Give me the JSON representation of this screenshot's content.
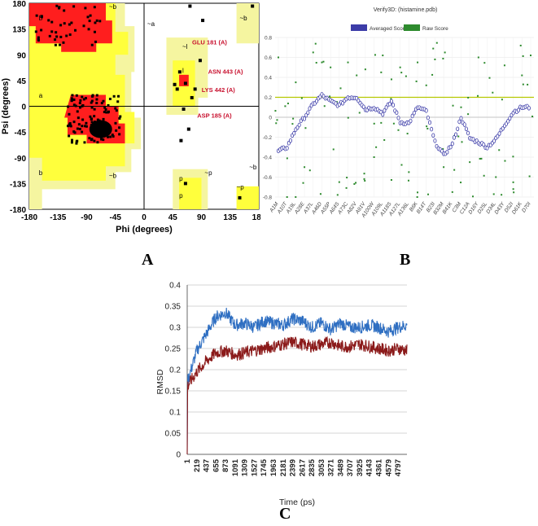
{
  "panel_labels": {
    "a": "A",
    "b": "B",
    "c": "C"
  },
  "chart_data": [
    {
      "type": "scatter",
      "panel": "A",
      "title": "",
      "xlabel": "Phi (degrees)",
      "ylabel": "Psi (degrees)",
      "xlim": [
        -180,
        180
      ],
      "ylim": [
        -180,
        180
      ],
      "xticks": [
        "-180",
        "-135",
        "-90",
        "-45",
        "0",
        "45",
        "90",
        "135",
        "180"
      ],
      "yticks": [
        "180",
        "135",
        "90",
        "45",
        "0",
        "-45",
        "-90",
        "-135",
        "-180"
      ],
      "region_labels": [
        "b",
        "a",
        "b",
        "~b",
        "~b",
        "~l",
        "l",
        "p",
        "p",
        "~p",
        "~b",
        "~b",
        "~p",
        "~a"
      ],
      "annotations": [
        {
          "text": "GLU 181 (A)",
          "x": 60,
          "y": 108
        },
        {
          "text": "ASN 443 (A)",
          "x": 85,
          "y": 57
        },
        {
          "text": "LYS 442 (A)",
          "x": 75,
          "y": 25
        },
        {
          "text": "ASP 185 (A)",
          "x": 68,
          "y": -20
        }
      ],
      "outliers": [
        [
          48,
          38
        ],
        [
          52,
          30
        ],
        [
          80,
          30
        ],
        [
          65,
          40
        ],
        [
          56,
          60
        ],
        [
          88,
          80
        ],
        [
          75,
          15
        ],
        [
          62,
          -5
        ],
        [
          70,
          -40
        ],
        [
          58,
          -60
        ],
        [
          72,
          175
        ],
        [
          65,
          -135
        ],
        [
          92,
          150
        ],
        [
          150,
          -160
        ],
        [
          170,
          175
        ]
      ],
      "grid": false
    },
    {
      "type": "scatter",
      "panel": "B",
      "title": "Verify3D:  (histamine.pdb)",
      "legend": [
        "Averaged Score",
        "Raw Score"
      ],
      "legend_position": "top",
      "ylim": [
        -0.8,
        0.8
      ],
      "yticks": [
        "0.8",
        "0.6",
        "0.4",
        "0.2",
        "0",
        "-0.2",
        "-0.4",
        "-0.6",
        "-0.8"
      ],
      "reference_line": 0.2,
      "categories": [
        "A1M",
        "A10T",
        "A19L",
        "A28E",
        "A37L",
        "A46D",
        "A55P",
        "A64S",
        "A73C",
        "A82V",
        "A91V",
        "A100W",
        "A109L",
        "A118S",
        "A127L",
        "A136L",
        "B6K",
        "B14T",
        "B23I",
        "B32M",
        "B41K",
        "C3M",
        "C12A",
        "D16Y",
        "D25L",
        "D34L",
        "D43Y",
        "D52I",
        "D61K",
        "D70I"
      ],
      "series": [
        {
          "name": "Averaged Score",
          "values": [
            -0.34,
            -0.3,
            -0.12,
            0.0,
            0.13,
            0.22,
            0.16,
            0.12,
            0.2,
            0.2,
            0.08,
            0.1,
            0.04,
            0.16,
            -0.05,
            -0.06,
            0.1,
            0.06,
            -0.25,
            -0.38,
            -0.27,
            0.0,
            -0.21,
            -0.25,
            -0.3,
            -0.22,
            -0.08,
            0.05,
            0.1,
            0.1
          ]
        },
        {
          "name": "Raw Score",
          "values": [
            0.6,
            -0.8,
            0.35,
            -0.5,
            0.65,
            0.55,
            0.5,
            -0.65,
            0.55,
            0.42,
            0.48,
            -0.4,
            0.62,
            0.38,
            0.5,
            -0.55,
            0.55,
            0.32,
            0.58,
            -0.5,
            -0.75,
            0.1,
            -0.45,
            0.6,
            -0.3,
            -0.6,
            0.52,
            -0.72,
            0.42,
            0.62
          ]
        }
      ],
      "grid": true
    },
    {
      "type": "line",
      "panel": "C",
      "title": "",
      "xlabel": "Time (ps)",
      "ylabel": "RMSD",
      "ylim": [
        0,
        0.4
      ],
      "yticks": [
        "0.4",
        "0.35",
        "0.3",
        "0.25",
        "0.2",
        "0.15",
        "0.1",
        "0.05",
        "0"
      ],
      "x_ticks": [
        "1",
        "219",
        "437",
        "655",
        "873",
        "1091",
        "1309",
        "1527",
        "1745",
        "1963",
        "2181",
        "2399",
        "2617",
        "2835",
        "3053",
        "3271",
        "3489",
        "3707",
        "3925",
        "4143",
        "4361",
        "4579",
        "4797"
      ],
      "x": [
        1,
        219,
        437,
        655,
        873,
        1091,
        1309,
        1527,
        1745,
        1963,
        2181,
        2399,
        2617,
        2835,
        3053,
        3271,
        3489,
        3707,
        3925,
        4143,
        4361,
        4579,
        4797,
        5000
      ],
      "series": [
        {
          "values": [
            0.17,
            0.245,
            0.285,
            0.325,
            0.335,
            0.305,
            0.31,
            0.3,
            0.315,
            0.31,
            0.305,
            0.32,
            0.315,
            0.3,
            0.31,
            0.295,
            0.31,
            0.3,
            0.3,
            0.305,
            0.3,
            0.29,
            0.3,
            0.305
          ],
          "color": "#2f6fc2"
        },
        {
          "values": [
            0.16,
            0.195,
            0.22,
            0.24,
            0.245,
            0.235,
            0.24,
            0.245,
            0.25,
            0.255,
            0.26,
            0.265,
            0.26,
            0.255,
            0.26,
            0.265,
            0.255,
            0.255,
            0.26,
            0.255,
            0.25,
            0.245,
            0.25,
            0.245
          ],
          "color": "#8b1a1a"
        }
      ],
      "grid": true
    }
  ],
  "colors": {
    "core": "#ff1e1e",
    "allowed": "#ffff3c",
    "generous": "#f5f5a0",
    "disallowed": "#ffffff",
    "avg": "#3c3ca8",
    "raw": "#2e8b2e",
    "refline": "#b5c800"
  }
}
